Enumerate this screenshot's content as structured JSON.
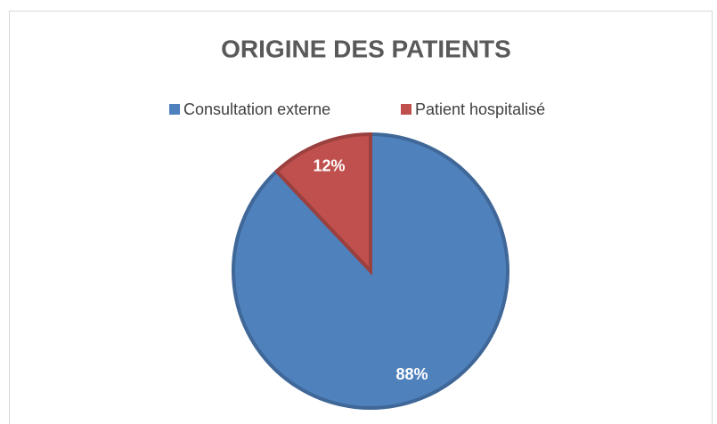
{
  "chart_data": {
    "type": "pie",
    "title": "ORIGINE DES PATIENTS",
    "categories": [
      "Consultation externe",
      "Patient hospitalisé"
    ],
    "values": [
      88,
      12
    ],
    "value_labels": [
      "88%",
      "12%"
    ],
    "colors": [
      "#4f81bd",
      "#c0504d"
    ],
    "legend": "top"
  }
}
